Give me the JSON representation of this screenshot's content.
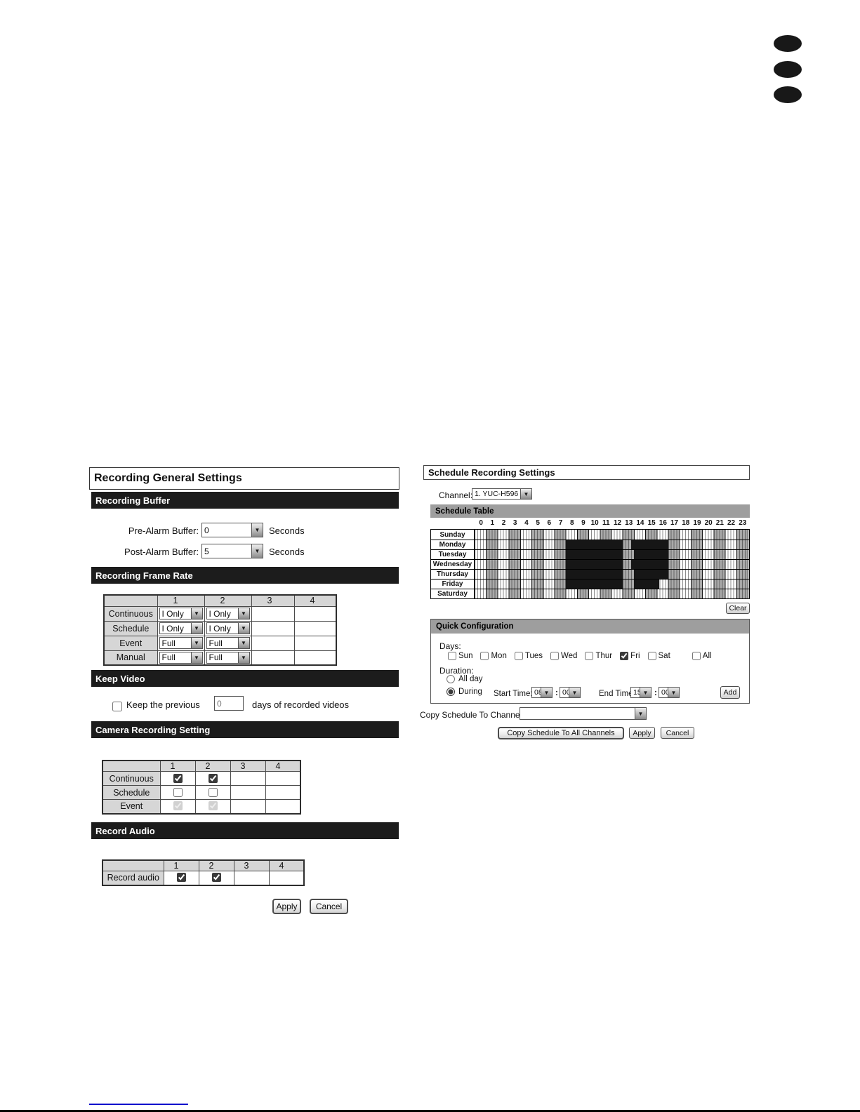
{
  "colors": {
    "section_bar": "#1c1c1c",
    "qc_header": "#9e9e9e",
    "selected": "#161616",
    "grid_gray": "#a9a9a9",
    "table_head": "#d6d6d6",
    "link_blue": "#0000cc"
  },
  "left_panel": {
    "title": "Recording General Settings",
    "sections": {
      "recording_buffer": {
        "header": "Recording Buffer",
        "fields": [
          {
            "label": "Pre-Alarm Buffer:",
            "value": "0",
            "suffix": "Seconds"
          },
          {
            "label": "Post-Alarm Buffer:",
            "value": "5",
            "suffix": "Seconds"
          }
        ]
      },
      "frame_rate": {
        "header": "Recording Frame Rate",
        "columns": [
          "",
          "1",
          "2",
          "3",
          "4"
        ],
        "rows": [
          {
            "label": "Continuous",
            "values": [
              "I Only",
              "I Only",
              "",
              ""
            ]
          },
          {
            "label": "Schedule",
            "values": [
              "I Only",
              "I Only",
              "",
              ""
            ]
          },
          {
            "label": "Event",
            "values": [
              "Full",
              "Full",
              "",
              ""
            ]
          },
          {
            "label": "Manual",
            "values": [
              "Full",
              "Full",
              "",
              ""
            ]
          }
        ]
      },
      "keep_video": {
        "header": "Keep Video",
        "checkbox_checked": false,
        "label_before": "Keep the previous",
        "value": "0",
        "label_after": "days of recorded videos"
      },
      "camera_recording": {
        "header": "Camera Recording Setting",
        "columns": [
          "",
          "1",
          "2",
          "3",
          "4"
        ],
        "rows": [
          {
            "label": "Continuous",
            "checks": [
              "checked",
              "checked",
              "none",
              "none"
            ]
          },
          {
            "label": "Schedule",
            "checks": [
              "unchecked",
              "unchecked",
              "none",
              "none"
            ]
          },
          {
            "label": "Event",
            "checks": [
              "checked-disabled",
              "checked-disabled",
              "none",
              "none"
            ]
          }
        ]
      },
      "record_audio": {
        "header": "Record Audio",
        "columns": [
          "",
          "1",
          "2",
          "3",
          "4"
        ],
        "rows": [
          {
            "label": "Record audio",
            "checks": [
              "checked",
              "checked",
              "none",
              "none"
            ]
          }
        ]
      }
    },
    "buttons": {
      "apply": "Apply",
      "cancel": "Cancel"
    }
  },
  "right_panel": {
    "title": "Schedule Recording Settings",
    "channel_label": "Channel:",
    "channel_value": "1. YUC-H596",
    "schedule_table": {
      "header": "Schedule Table",
      "hours": [
        "0",
        "1",
        "2",
        "3",
        "4",
        "5",
        "6",
        "7",
        "8",
        "9",
        "10",
        "11",
        "12",
        "13",
        "14",
        "15",
        "16",
        "17",
        "18",
        "19",
        "20",
        "21",
        "22",
        "23"
      ],
      "days": [
        {
          "label": "Sunday",
          "ranges": []
        },
        {
          "label": "Monday",
          "ranges": [
            [
              8,
              13
            ],
            [
              13.75,
              17
            ]
          ]
        },
        {
          "label": "Tuesday",
          "ranges": [
            [
              8,
              13
            ],
            [
              14,
              17
            ]
          ]
        },
        {
          "label": "Wednesday",
          "ranges": [
            [
              8,
              13
            ],
            [
              13.75,
              17
            ]
          ]
        },
        {
          "label": "Thursday",
          "ranges": [
            [
              8,
              13
            ],
            [
              14,
              17
            ]
          ]
        },
        {
          "label": "Friday",
          "ranges": [
            [
              8,
              13
            ],
            [
              14,
              16.25
            ]
          ]
        },
        {
          "label": "Saturday",
          "ranges": []
        }
      ],
      "clear_button": "Clear"
    },
    "quick_config": {
      "header": "Quick Configuration",
      "days_label": "Days:",
      "day_checkboxes": [
        {
          "label": "Sun",
          "checked": false
        },
        {
          "label": "Mon",
          "checked": false
        },
        {
          "label": "Tues",
          "checked": false
        },
        {
          "label": "Wed",
          "checked": false
        },
        {
          "label": "Thur",
          "checked": false
        },
        {
          "label": "Fri",
          "checked": true
        },
        {
          "label": "Sat",
          "checked": false
        },
        {
          "label": "All",
          "checked": false
        }
      ],
      "duration_label": "Duration:",
      "all_day_label": "All day",
      "all_day_selected": false,
      "during_label": "During",
      "during_selected": true,
      "start_time_label": "Start Time:",
      "start_hour": "08",
      "start_min": "00",
      "end_time_label": "End Time:",
      "end_hour": "15",
      "end_min": "00",
      "add_button": "Add"
    },
    "copy_channel_label": "Copy Schedule To Channel:",
    "copy_channel_value": "",
    "buttons": {
      "copy_all": "Copy Schedule To All Channels",
      "apply": "Apply",
      "cancel": "Cancel"
    }
  }
}
